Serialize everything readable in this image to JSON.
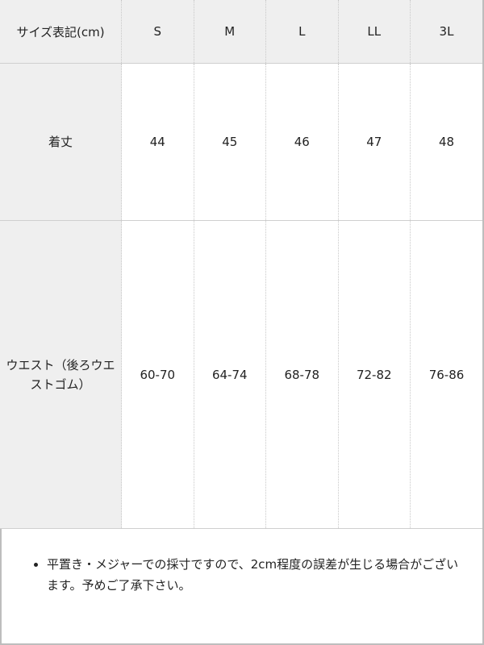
{
  "table": {
    "header": [
      "サイズ表記(cm)",
      "S",
      "M",
      "L",
      "LL",
      "3L"
    ],
    "rows": [
      {
        "label": "着丈",
        "values": [
          "44",
          "45",
          "46",
          "47",
          "48"
        ]
      },
      {
        "label": "ウエスト（後ろウエストゴム）",
        "values": [
          "60-70",
          "64-74",
          "68-78",
          "72-82",
          "76-86"
        ]
      }
    ]
  },
  "note": "平置き・メジャーでの採寸ですので、2cm程度の誤差が生じる場合がございます。予めご了承下さい。"
}
